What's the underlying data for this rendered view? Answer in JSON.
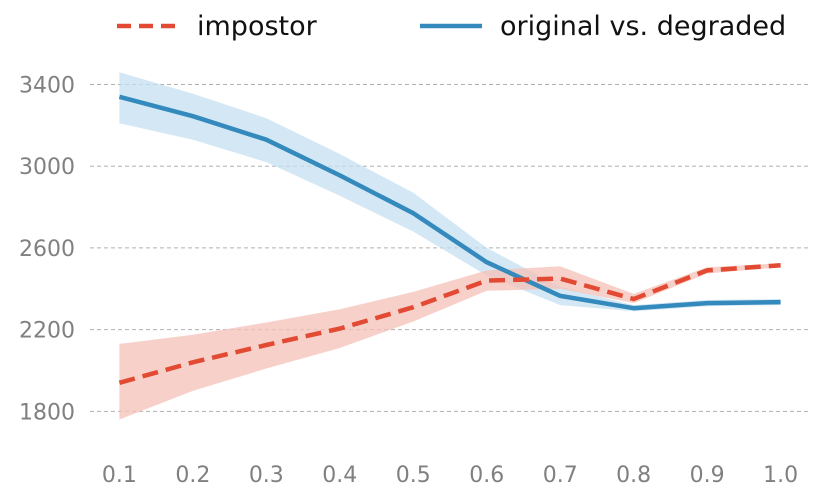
{
  "chart_data": {
    "type": "line",
    "title": "",
    "xlabel": "",
    "ylabel": "",
    "x": [
      0.1,
      0.2,
      0.3,
      0.4,
      0.5,
      0.6,
      0.7,
      0.8,
      0.9,
      1.0
    ],
    "x_tick_labels": [
      "0.1",
      "0.2",
      "0.3",
      "0.4",
      "0.5",
      "0.6",
      "0.7",
      "0.8",
      "0.9",
      "1.0"
    ],
    "y_ticks": [
      1800,
      2200,
      2600,
      3000,
      3400
    ],
    "ylim": [
      1650,
      3520
    ],
    "grid": "horizontal dashed",
    "legend_position": "top",
    "series": [
      {
        "name": "impostor",
        "style": "dashed",
        "color": "#e24a33",
        "band_color": "#f4c2b7",
        "values": [
          1940,
          2040,
          2125,
          2205,
          2310,
          2440,
          2450,
          2350,
          2490,
          2515
        ],
        "lower": [
          1760,
          1900,
          2010,
          2110,
          2240,
          2390,
          2400,
          2330,
          2475,
          2505
        ],
        "upper": [
          2130,
          2175,
          2235,
          2300,
          2385,
          2490,
          2510,
          2375,
          2505,
          2525
        ]
      },
      {
        "name": "original vs. degraded",
        "style": "solid",
        "color": "#348abd",
        "band_color": "#c6dff0",
        "values": [
          3340,
          3245,
          3130,
          2955,
          2770,
          2530,
          2365,
          2305,
          2330,
          2335
        ],
        "lower": [
          3210,
          3130,
          3020,
          2855,
          2680,
          2465,
          2320,
          2290,
          2315,
          2320
        ],
        "upper": [
          3460,
          3355,
          3235,
          3060,
          2870,
          2600,
          2410,
          2320,
          2345,
          2350
        ]
      }
    ]
  }
}
